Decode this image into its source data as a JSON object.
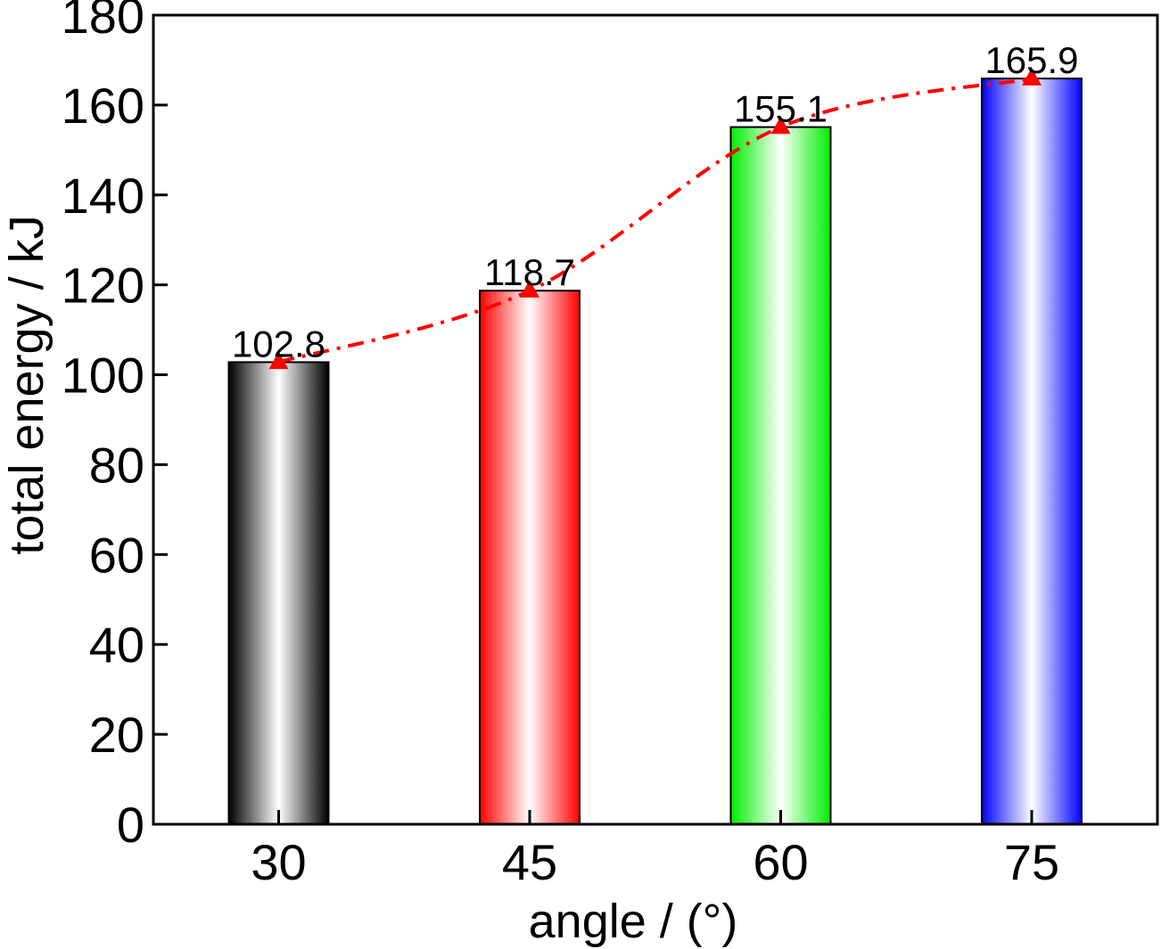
{
  "chart_data": {
    "type": "bar",
    "categories": [
      "30",
      "45",
      "60",
      "75"
    ],
    "values": [
      102.8,
      118.7,
      155.1,
      165.9
    ],
    "data_labels": [
      "102.8",
      "118.7",
      "155.1",
      "165.9"
    ],
    "bar_colors": [
      "#000000",
      "#ff0000",
      "#00ee00",
      "#0000ff"
    ],
    "line": {
      "color": "#ff0000",
      "style": "dash-dot",
      "marker": "triangle",
      "values": [
        102.8,
        118.7,
        155.1,
        165.9
      ]
    },
    "title": "",
    "xlabel": "angle / (°)",
    "ylabel": "total energy / kJ",
    "ylim": [
      0,
      180
    ],
    "yticks": [
      0,
      20,
      40,
      60,
      80,
      100,
      120,
      140,
      160,
      180
    ],
    "grid": false,
    "legend": "none"
  }
}
